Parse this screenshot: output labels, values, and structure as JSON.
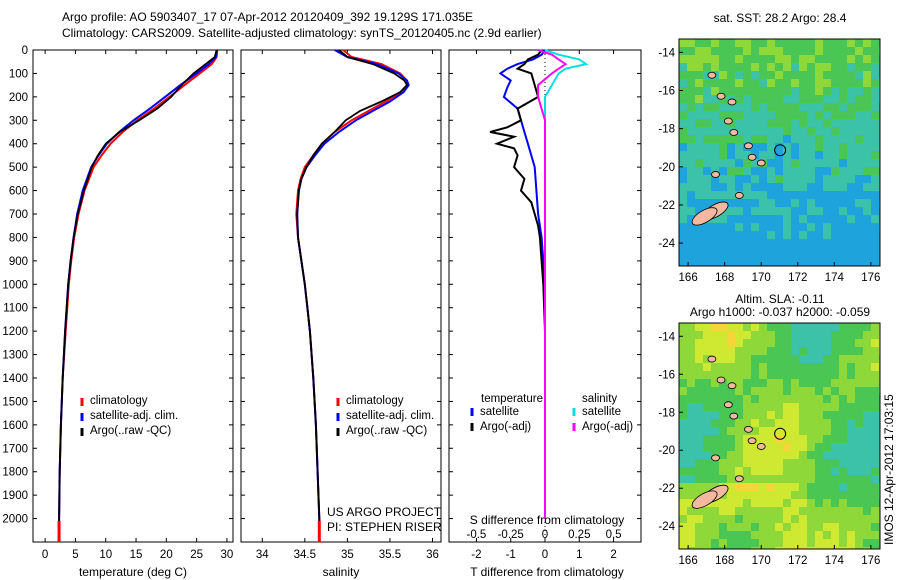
{
  "title_line1": "Argo profile: AO 5903407_17 07-Apr-2012 20120409_392 19.129S 171.035E",
  "title_line2": "Climatology: CARS2009. Satellite-adjusted climatology: synTS_20120405.nc (2.9d earlier)",
  "project_line1": "US ARGO PROJECT",
  "project_line2": "PI: STEPHEN RISER",
  "side_label": "IMOS 12-Apr-2012 17:03:15",
  "colors": {
    "climatology": "#ff0000",
    "satellite": "#0000ff",
    "argo": "#000000",
    "sat_salinity": "#00e0e0",
    "argo_salinity": "#ff00ff"
  },
  "chart_data": [
    {
      "type": "line",
      "xlabel": "temperature (deg C)",
      "ylabel": "",
      "xlim": [
        -2,
        31
      ],
      "ylim": [
        2100,
        0
      ],
      "x_ticks": [
        0,
        5,
        10,
        15,
        20,
        25,
        30
      ],
      "y_ticks": [
        0,
        100,
        200,
        300,
        400,
        500,
        600,
        700,
        800,
        900,
        1000,
        1100,
        1200,
        1300,
        1400,
        1500,
        1600,
        1700,
        1800,
        1900,
        2000
      ],
      "legend": [
        "climatology",
        "satellite-adj. clim.",
        "Argo(..raw -QC)"
      ],
      "series": [
        {
          "name": "climatology",
          "depth": [
            0,
            30,
            60,
            100,
            150,
            200,
            250,
            300,
            350,
            400,
            450,
            500,
            600,
            700,
            800,
            900,
            1000,
            1200,
            1400,
            1600,
            1800,
            2000,
            2050
          ],
          "values": [
            28.4,
            28.3,
            27.5,
            25.5,
            23.0,
            20.5,
            18.0,
            15.2,
            12.8,
            10.8,
            9.3,
            8.0,
            6.5,
            5.5,
            4.8,
            4.3,
            3.9,
            3.4,
            2.9,
            2.6,
            2.4,
            2.3,
            2.3
          ]
        },
        {
          "name": "satellite-adj. clim.",
          "depth": [
            0,
            30,
            60,
            100,
            150,
            200,
            250,
            300,
            350,
            400,
            450,
            500,
            600,
            700,
            800,
            900,
            1000,
            1200,
            1400,
            1600,
            1800,
            2000,
            2050
          ],
          "values": [
            28.4,
            28.2,
            27.0,
            25.0,
            22.3,
            19.8,
            17.3,
            14.6,
            12.2,
            10.2,
            8.8,
            7.6,
            6.2,
            5.3,
            4.7,
            4.2,
            3.8,
            3.3,
            2.9,
            2.6,
            2.4,
            2.3,
            2.3
          ]
        },
        {
          "name": "Argo(..raw -QC)",
          "depth": [
            0,
            30,
            60,
            100,
            150,
            200,
            250,
            300,
            350,
            400,
            450,
            500,
            600,
            700,
            800,
            900,
            1000,
            1200,
            1400,
            1600,
            1800,
            2000,
            2050
          ],
          "values": [
            28.3,
            28.0,
            26.5,
            24.5,
            22.5,
            20.8,
            18.5,
            15.5,
            12.3,
            10.0,
            8.7,
            7.7,
            6.4,
            5.4,
            4.7,
            4.2,
            3.8,
            3.3,
            2.9,
            2.6,
            2.4,
            2.3,
            2.3
          ]
        }
      ]
    },
    {
      "type": "line",
      "xlabel": "salinity",
      "ylabel": "",
      "xlim": [
        33.75,
        36.1
      ],
      "ylim": [
        2100,
        0
      ],
      "x_ticks": [
        34,
        34.5,
        35,
        35.5,
        36
      ],
      "legend": [
        "climatology",
        "satellite-adj. clim.",
        "Argo(..raw -QC)"
      ],
      "series": [
        {
          "name": "climatology",
          "depth": [
            0,
            30,
            60,
            100,
            130,
            150,
            180,
            220,
            260,
            300,
            350,
            400,
            450,
            500,
            550,
            600,
            700,
            800,
            900,
            1000,
            1100,
            1200,
            1400,
            1600,
            1800,
            2000,
            2050
          ],
          "values": [
            34.95,
            35.05,
            35.4,
            35.62,
            35.7,
            35.7,
            35.63,
            35.45,
            35.25,
            35.05,
            34.85,
            34.7,
            34.6,
            34.5,
            34.45,
            34.42,
            34.4,
            34.42,
            34.46,
            34.5,
            34.53,
            34.56,
            34.6,
            34.63,
            34.65,
            34.67,
            34.67
          ]
        },
        {
          "name": "satellite-adj. clim.",
          "depth": [
            0,
            30,
            60,
            100,
            130,
            150,
            180,
            220,
            260,
            300,
            350,
            400,
            450,
            500,
            550,
            600,
            700,
            800,
            900,
            1000,
            1100,
            1200,
            1400,
            1600,
            1800,
            2000,
            2050
          ],
          "values": [
            34.85,
            35.0,
            35.35,
            35.6,
            35.7,
            35.72,
            35.66,
            35.5,
            35.3,
            35.1,
            34.9,
            34.73,
            34.62,
            34.52,
            34.46,
            34.43,
            34.41,
            34.42,
            34.46,
            34.5,
            34.53,
            34.56,
            34.6,
            34.63,
            34.65,
            34.67,
            34.67
          ]
        },
        {
          "name": "Argo(..raw -QC)",
          "depth": [
            0,
            30,
            60,
            100,
            130,
            150,
            180,
            220,
            260,
            300,
            350,
            400,
            450,
            500,
            550,
            600,
            700,
            800,
            900,
            1000,
            1100,
            1200,
            1400,
            1600,
            1800,
            2000,
            2050
          ],
          "values": [
            34.9,
            35.0,
            35.3,
            35.55,
            35.67,
            35.7,
            35.62,
            35.4,
            35.15,
            34.98,
            34.85,
            34.7,
            34.6,
            34.52,
            34.46,
            34.43,
            34.41,
            34.42,
            34.46,
            34.5,
            34.53,
            34.56,
            34.6,
            34.63,
            34.65,
            34.67,
            34.67
          ]
        }
      ]
    },
    {
      "type": "line",
      "xlabel": "T difference from climatology",
      "xlabel_top": "S difference from climatology",
      "xlim": [
        -2.8,
        2.8
      ],
      "ylim": [
        2100,
        0
      ],
      "x_ticks": [
        -2,
        -1,
        0,
        1,
        2
      ],
      "s_ticks": [
        -0.5,
        -0.25,
        0,
        0.25,
        0.5
      ],
      "legend_left_title": "temperature",
      "legend_right_title": "salinity",
      "legend": [
        "satellite",
        "Argo(-adj)"
      ],
      "series": [
        {
          "name": "satellite",
          "variable": "temperature",
          "depth": [
            0,
            20,
            40,
            60,
            80,
            100,
            130,
            160,
            200,
            250,
            300,
            350,
            400,
            450,
            500,
            600,
            700,
            800,
            900,
            1000,
            1200,
            1400,
            1600,
            1800,
            2000
          ],
          "values": [
            0.0,
            -0.1,
            -0.35,
            -0.8,
            -1.1,
            -1.3,
            -1.0,
            -1.1,
            -1.2,
            -0.8,
            -0.7,
            -0.6,
            -0.5,
            -0.4,
            -0.3,
            -0.25,
            -0.2,
            -0.1,
            -0.05,
            0.0,
            0.0,
            0.0,
            0.0,
            0.0,
            0.0
          ]
        },
        {
          "name": "Argo(-adj)",
          "variable": "temperature",
          "depth": [
            0,
            20,
            40,
            60,
            80,
            100,
            150,
            200,
            250,
            300,
            330,
            350,
            370,
            400,
            420,
            450,
            500,
            550,
            600,
            650,
            700,
            750,
            800,
            900,
            1000,
            1200,
            1400,
            1600,
            1800,
            2000
          ],
          "values": [
            -0.1,
            -0.2,
            -0.5,
            -0.6,
            -0.8,
            -0.4,
            -0.3,
            -0.2,
            -0.8,
            -0.7,
            -1.1,
            -1.6,
            -0.9,
            -1.4,
            -0.9,
            -0.8,
            -0.9,
            -0.6,
            -0.7,
            -0.4,
            -0.3,
            -0.2,
            -0.15,
            -0.1,
            -0.05,
            0.0,
            0.0,
            0.0,
            0.0,
            0.0
          ]
        },
        {
          "name": "satellite",
          "variable": "salinity",
          "depth": [
            0,
            20,
            40,
            60,
            80,
            100,
            150,
            200,
            300,
            400,
            500,
            700,
            900,
            1200,
            1600,
            2000
          ],
          "values": [
            0.0,
            0.1,
            0.25,
            0.3,
            0.15,
            0.1,
            0.05,
            0.0,
            0.0,
            0.0,
            0.0,
            0.0,
            0.0,
            0.0,
            0.0,
            0.0
          ]
        },
        {
          "name": "Argo(-adj)",
          "variable": "salinity",
          "depth": [
            0,
            20,
            40,
            60,
            80,
            100,
            150,
            200,
            300,
            400,
            500,
            700,
            900,
            1200,
            1600,
            2000
          ],
          "values": [
            -0.05,
            0.05,
            0.1,
            0.15,
            0.1,
            0.05,
            -0.05,
            -0.05,
            0.0,
            0.0,
            0.0,
            0.0,
            0.0,
            0.0,
            0.0,
            0.0
          ]
        }
      ]
    },
    {
      "type": "heatmap",
      "title": "sat. SST: 28.2 Argo: 28.4",
      "xlim": [
        165.5,
        176.5
      ],
      "ylim": [
        -25.2,
        -13.3
      ],
      "x_ticks": [
        166,
        168,
        170,
        172,
        174,
        176
      ],
      "y_ticks": [
        -14,
        -16,
        -18,
        -20,
        -22,
        -24
      ],
      "profile_position": {
        "lon": 171.035,
        "lat": -19.129
      }
    },
    {
      "type": "heatmap",
      "title_line1": "Altim. SLA: -0.11",
      "title_line2": "Argo h1000: -0.037 h2000: -0.059",
      "xlim": [
        165.5,
        176.5
      ],
      "ylim": [
        -25.2,
        -13.3
      ],
      "x_ticks": [
        166,
        168,
        170,
        172,
        174,
        176
      ],
      "y_ticks": [
        -14,
        -16,
        -18,
        -20,
        -22,
        -24
      ],
      "profile_position": {
        "lon": 171.035,
        "lat": -19.129
      }
    }
  ]
}
